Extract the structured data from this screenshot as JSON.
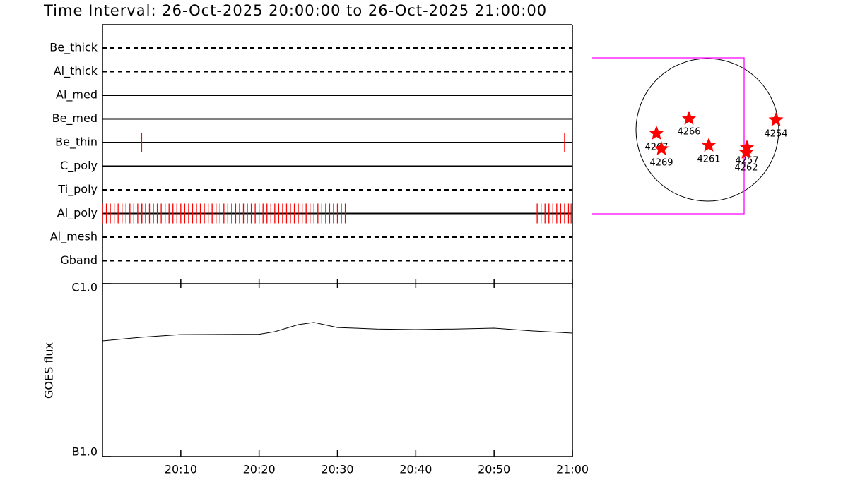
{
  "chart_data": [
    {
      "type": "timeline",
      "title": "Time Interval: 26-Oct-2025 20:00:00 to 26-Oct-2025 21:00:00",
      "xlim": [
        "20:00",
        "21:00"
      ],
      "categories": [
        "Be_thick",
        "Al_thick",
        "Al_med",
        "Be_med",
        "Be_thin",
        "C_poly",
        "Ti_poly",
        "Al_poly",
        "Al_mesh",
        "Gband"
      ],
      "dashed": [
        true,
        true,
        false,
        false,
        false,
        false,
        true,
        false,
        true,
        true
      ],
      "color": "#ff0000",
      "exposures": [
        [],
        [],
        [],
        [],
        [
          "20:05:00",
          "20:59:00"
        ],
        [],
        [],
        [
          "20:00:00",
          "20:00:30",
          "20:01:00",
          "20:01:30",
          "20:02:00",
          "20:02:30",
          "20:03:00",
          "20:03:30",
          "20:04:00",
          "20:04:30",
          "20:05:00",
          "20:05:10",
          "20:05:30",
          "20:06:00",
          "20:06:30",
          "20:07:00",
          "20:07:30",
          "20:08:00",
          "20:08:30",
          "20:09:00",
          "20:09:30",
          "20:10:00",
          "20:10:30",
          "20:11:00",
          "20:11:30",
          "20:12:00",
          "20:12:30",
          "20:13:00",
          "20:13:30",
          "20:14:00",
          "20:14:30",
          "20:15:00",
          "20:15:30",
          "20:16:00",
          "20:16:30",
          "20:17:00",
          "20:17:30",
          "20:18:00",
          "20:18:30",
          "20:19:00",
          "20:19:30",
          "20:20:00",
          "20:20:30",
          "20:21:00",
          "20:21:30",
          "20:22:00",
          "20:22:30",
          "20:23:00",
          "20:23:30",
          "20:24:00",
          "20:24:30",
          "20:25:00",
          "20:25:30",
          "20:26:00",
          "20:26:30",
          "20:27:00",
          "20:27:30",
          "20:28:00",
          "20:28:30",
          "20:29:00",
          "20:29:30",
          "20:30:00",
          "20:30:30",
          "20:31:00",
          "20:55:30",
          "20:56:00",
          "20:56:30",
          "20:57:00",
          "20:57:30",
          "20:58:00",
          "20:58:30",
          "20:59:00",
          "20:59:30",
          "20:59:50"
        ],
        [],
        []
      ]
    },
    {
      "type": "line",
      "ylabel": "GOES flux",
      "log_y": true,
      "xlim": [
        "20:00",
        "21:00"
      ],
      "xticks": [
        "20:10",
        "20:20",
        "20:30",
        "20:40",
        "20:50",
        "21:00"
      ],
      "ylim": [
        1e-07,
        1e-06
      ],
      "yticks": [
        {
          "value": 1e-07,
          "label": "B1.0"
        },
        {
          "value": 1e-06,
          "label": "C1.0"
        }
      ],
      "x": [
        "20:00",
        "20:05",
        "20:10",
        "20:20",
        "20:22",
        "20:25",
        "20:27",
        "20:30",
        "20:35",
        "20:40",
        "20:45",
        "20:50",
        "20:55",
        "21:00"
      ],
      "values": [
        4.67e-07,
        4.9e-07,
        5.08e-07,
        5.1e-07,
        5.28e-07,
        5.8e-07,
        5.97e-07,
        5.58e-07,
        5.47e-07,
        5.43e-07,
        5.47e-07,
        5.53e-07,
        5.33e-07,
        5.18e-07
      ],
      "color": "#000000"
    }
  ],
  "sun_map": {
    "regions": [
      "4266",
      "4267",
      "4269",
      "4261",
      "4257",
      "4262",
      "4254"
    ],
    "color": "#ff0000",
    "box_color": "#ff00ff"
  }
}
